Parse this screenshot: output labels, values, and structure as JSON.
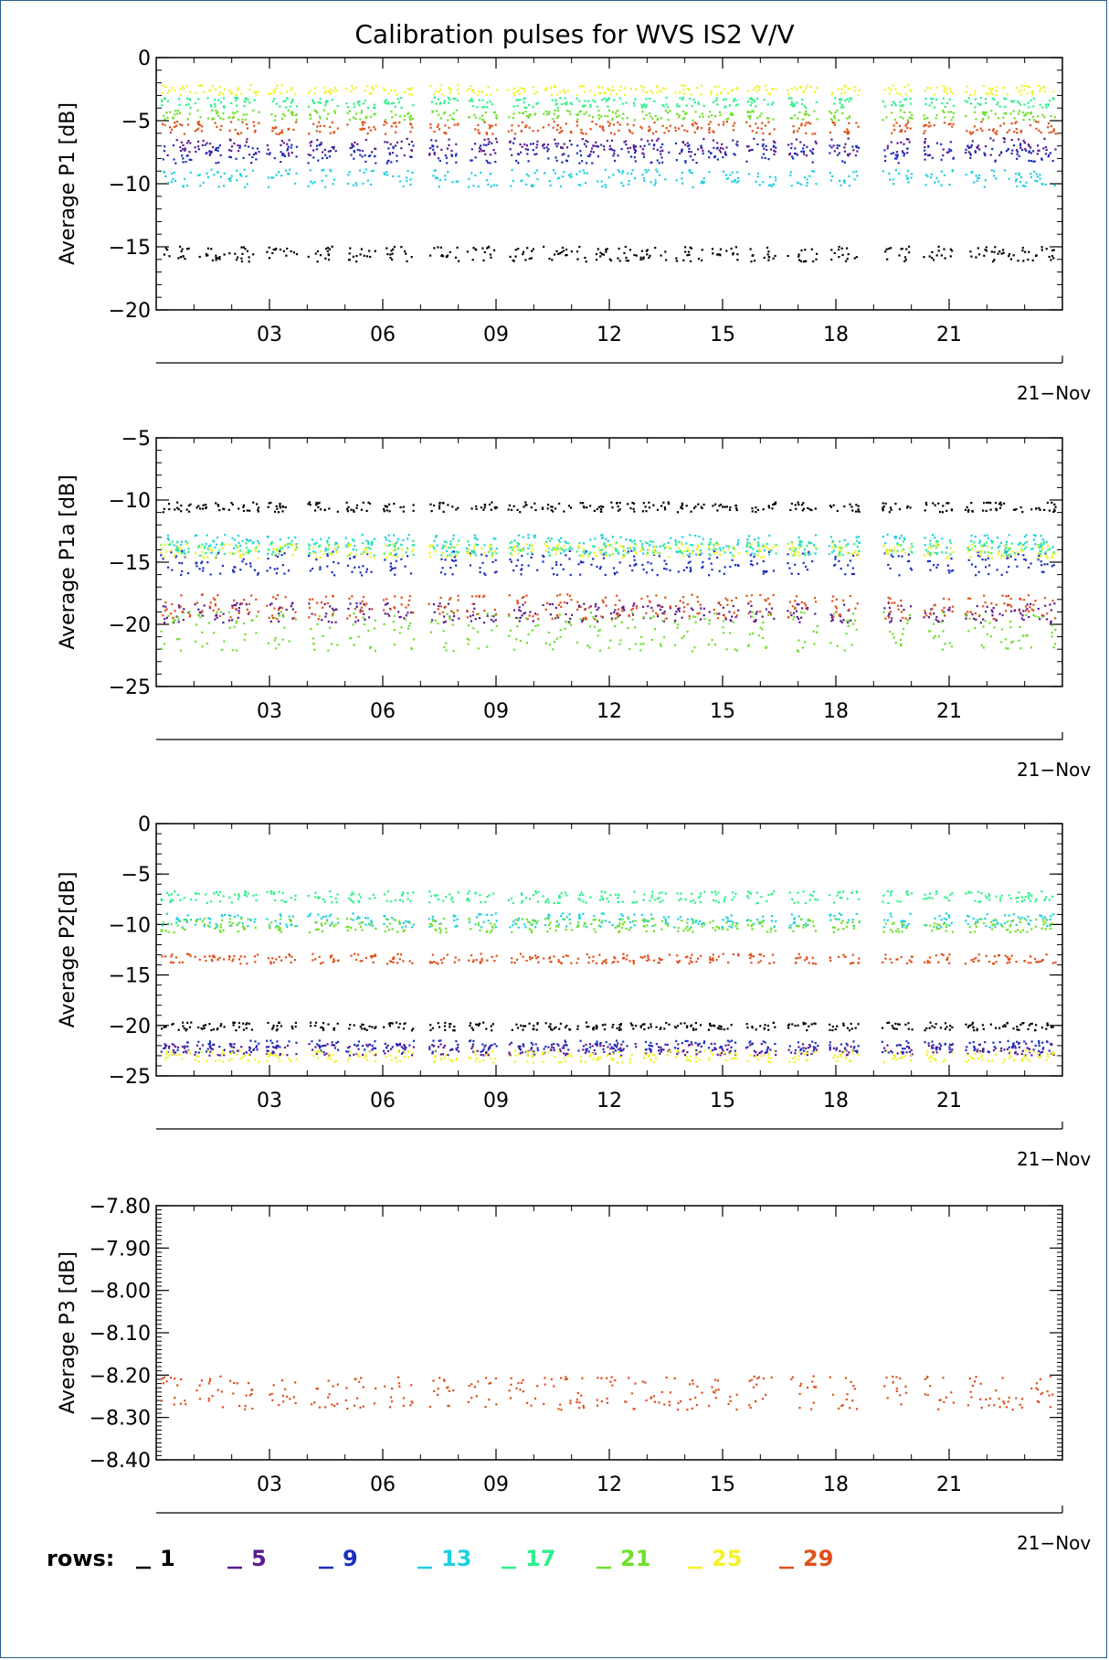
{
  "title": "Calibration pulses for WVS IS2 V/V",
  "legend": {
    "prefix": "rows:",
    "entries": [
      {
        "label": "1",
        "color": "#000000"
      },
      {
        "label": "5",
        "color": "#5b1a8f"
      },
      {
        "label": "9",
        "color": "#1a2fbf"
      },
      {
        "label": "13",
        "color": "#1fd0e0"
      },
      {
        "label": "17",
        "color": "#2ef08a"
      },
      {
        "label": "21",
        "color": "#6ee02a"
      },
      {
        "label": "25",
        "color": "#f2f22a"
      },
      {
        "label": "29",
        "color": "#e0501a"
      }
    ]
  },
  "chart_data": [
    {
      "type": "scatter",
      "title": "Calibration pulses for WVS IS2 V/V",
      "ylabel": "Average P1 [dB]",
      "ylim": [
        -20,
        0
      ],
      "yticks": [
        "0",
        "−5",
        "−10",
        "−15",
        "−20"
      ],
      "ytick_values": [
        0,
        -5,
        -10,
        -15,
        -20
      ],
      "xticks": [
        "03",
        "06",
        "09",
        "12",
        "15",
        "18",
        "21"
      ],
      "xtick_values": [
        3,
        6,
        9,
        12,
        15,
        18,
        21
      ],
      "xlim": [
        0,
        24
      ],
      "date_label": "21−Nov",
      "series": [
        {
          "name": "1",
          "color": "#000000",
          "level": -15.5,
          "spread": 0.6
        },
        {
          "name": "5",
          "color": "#5b1a8f",
          "level": -7.0,
          "spread": 0.7
        },
        {
          "name": "9",
          "color": "#1a2fbf",
          "level": -7.5,
          "spread": 0.8
        },
        {
          "name": "13",
          "color": "#1fd0e0",
          "level": -9.5,
          "spread": 0.7
        },
        {
          "name": "17",
          "color": "#2ef08a",
          "level": -3.5,
          "spread": 0.4
        },
        {
          "name": "21",
          "color": "#6ee02a",
          "level": -4.5,
          "spread": 0.4
        },
        {
          "name": "25",
          "color": "#f2f22a",
          "level": -2.5,
          "spread": 0.4
        },
        {
          "name": "29",
          "color": "#e0501a",
          "level": -5.5,
          "spread": 0.5
        }
      ]
    },
    {
      "type": "scatter",
      "ylabel": "Average P1a [dB]",
      "ylim": [
        -25,
        -5
      ],
      "yticks": [
        "−5",
        "−10",
        "−15",
        "−20",
        "−25"
      ],
      "ytick_values": [
        -5,
        -10,
        -15,
        -20,
        -25
      ],
      "xticks": [
        "03",
        "06",
        "09",
        "12",
        "15",
        "18",
        "21"
      ],
      "xtick_values": [
        3,
        6,
        9,
        12,
        15,
        18,
        21
      ],
      "xlim": [
        0,
        24
      ],
      "date_label": "21−Nov",
      "series": [
        {
          "name": "1",
          "color": "#000000",
          "level": -10.5,
          "spread": 0.4
        },
        {
          "name": "5",
          "color": "#5b1a8f",
          "level": -19.0,
          "spread": 0.8
        },
        {
          "name": "9",
          "color": "#1a2fbf",
          "level": -15.0,
          "spread": 1.0
        },
        {
          "name": "13",
          "color": "#1fd0e0",
          "level": -13.5,
          "spread": 0.8
        },
        {
          "name": "17",
          "color": "#2ef08a",
          "level": -13.8,
          "spread": 0.6
        },
        {
          "name": "21",
          "color": "#6ee02a",
          "level": -20.5,
          "spread": 1.6
        },
        {
          "name": "25",
          "color": "#f2f22a",
          "level": -14.0,
          "spread": 0.6
        },
        {
          "name": "29",
          "color": "#e0501a",
          "level": -18.5,
          "spread": 1.0
        }
      ]
    },
    {
      "type": "scatter",
      "ylabel": "Average P2[dB]",
      "ylim": [
        -25,
        0
      ],
      "yticks": [
        "0",
        "−5",
        "−10",
        "−15",
        "−20",
        "−25"
      ],
      "ytick_values": [
        0,
        -5,
        -10,
        -15,
        -20,
        -25
      ],
      "xticks": [
        "03",
        "06",
        "09",
        "12",
        "15",
        "18",
        "21"
      ],
      "xtick_values": [
        3,
        6,
        9,
        12,
        15,
        18,
        21
      ],
      "xlim": [
        0,
        24
      ],
      "date_label": "21−Nov",
      "series": [
        {
          "name": "1",
          "color": "#000000",
          "level": -20.0,
          "spread": 0.4
        },
        {
          "name": "5",
          "color": "#5b1a8f",
          "level": -22.3,
          "spread": 0.6
        },
        {
          "name": "9",
          "color": "#1a2fbf",
          "level": -22.0,
          "spread": 0.6
        },
        {
          "name": "13",
          "color": "#1fd0e0",
          "level": -9.5,
          "spread": 0.7
        },
        {
          "name": "17",
          "color": "#2ef08a",
          "level": -7.2,
          "spread": 0.6
        },
        {
          "name": "21",
          "color": "#6ee02a",
          "level": -10.0,
          "spread": 0.7
        },
        {
          "name": "25",
          "color": "#f2f22a",
          "level": -23.0,
          "spread": 0.6
        },
        {
          "name": "29",
          "color": "#e0501a",
          "level": -13.3,
          "spread": 0.5
        }
      ]
    },
    {
      "type": "scatter",
      "ylabel": "Average P3 [dB]",
      "ylim": [
        -8.4,
        -7.8
      ],
      "yticks": [
        "−7.80",
        "−7.90",
        "−8.00",
        "−8.10",
        "−8.20",
        "−8.30",
        "−8.40"
      ],
      "ytick_values": [
        -7.8,
        -7.9,
        -8.0,
        -8.1,
        -8.2,
        -8.3,
        -8.4
      ],
      "xticks": [
        "03",
        "06",
        "09",
        "12",
        "15",
        "18",
        "21"
      ],
      "xtick_values": [
        3,
        6,
        9,
        12,
        15,
        18,
        21
      ],
      "xlim": [
        0,
        24
      ],
      "date_label": "21−Nov",
      "series": [
        {
          "name": "29",
          "color": "#e0501a",
          "level": -8.24,
          "spread": 0.04
        }
      ]
    }
  ]
}
